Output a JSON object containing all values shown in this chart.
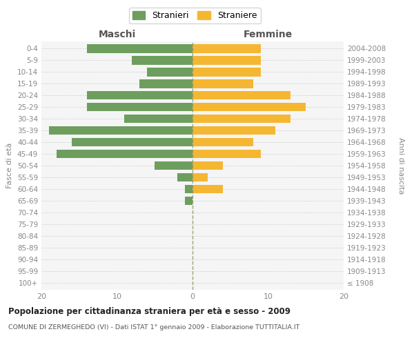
{
  "age_groups": [
    "100+",
    "95-99",
    "90-94",
    "85-89",
    "80-84",
    "75-79",
    "70-74",
    "65-69",
    "60-64",
    "55-59",
    "50-54",
    "45-49",
    "40-44",
    "35-39",
    "30-34",
    "25-29",
    "20-24",
    "15-19",
    "10-14",
    "5-9",
    "0-4"
  ],
  "birth_years": [
    "≤ 1908",
    "1909-1913",
    "1914-1918",
    "1919-1923",
    "1924-1928",
    "1929-1933",
    "1934-1938",
    "1939-1943",
    "1944-1948",
    "1949-1953",
    "1954-1958",
    "1959-1963",
    "1964-1968",
    "1969-1973",
    "1974-1978",
    "1979-1983",
    "1984-1988",
    "1989-1993",
    "1994-1998",
    "1999-2003",
    "2004-2008"
  ],
  "maschi": [
    0,
    0,
    0,
    0,
    0,
    0,
    0,
    1,
    1,
    2,
    5,
    18,
    16,
    19,
    9,
    14,
    14,
    7,
    6,
    8,
    14
  ],
  "femmine": [
    0,
    0,
    0,
    0,
    0,
    0,
    0,
    0,
    4,
    2,
    4,
    9,
    8,
    11,
    13,
    15,
    13,
    8,
    9,
    9,
    9
  ],
  "color_maschi": "#6d9e5e",
  "color_femmine": "#f5b731",
  "title_main": "Popolazione per cittadinanza straniera per età e sesso - 2009",
  "title_sub": "COMUNE DI ZERMEGHEDO (VI) - Dati ISTAT 1° gennaio 2009 - Elaborazione TUTTITALIA.IT",
  "label_maschi": "Maschi",
  "label_femmine": "Femmine",
  "legend_stranieri": "Stranieri",
  "legend_straniere": "Straniere",
  "ylabel_left": "Fasce di età",
  "ylabel_right": "Anni di nascita",
  "xlim": 20,
  "bg_color": "#ffffff",
  "plot_bg_color": "#f5f5f5"
}
